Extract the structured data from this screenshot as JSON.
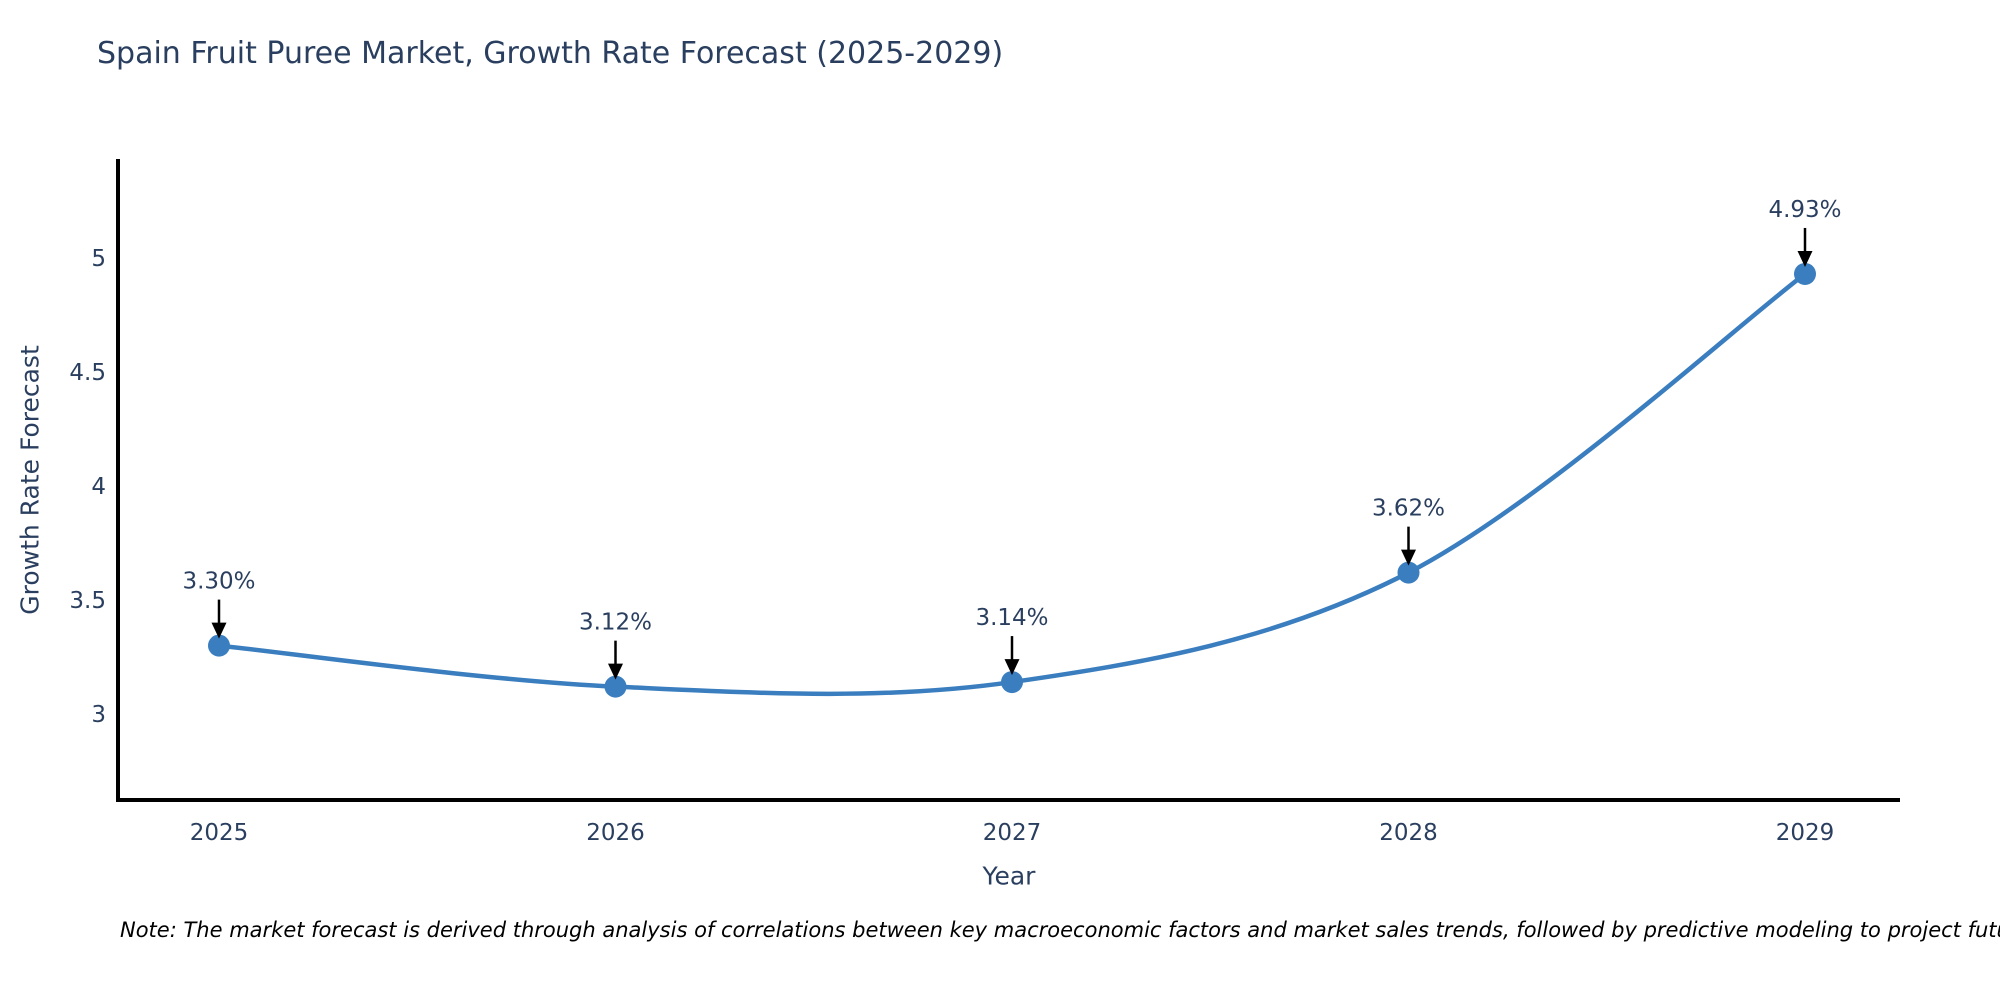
{
  "title": "Spain Fruit Puree Market, Growth Rate Forecast (2025-2029)",
  "note": "Note: The market forecast is derived through analysis of correlations between key macroeconomic factors and market sales trends, followed by predictive modeling to project future sales.",
  "chart_data": {
    "type": "line",
    "line_shape": "spline",
    "x": [
      "2025",
      "2026",
      "2027",
      "2028",
      "2029"
    ],
    "values": [
      3.3,
      3.12,
      3.14,
      3.62,
      4.93
    ],
    "point_labels": [
      "3.30%",
      "3.12%",
      "3.14%",
      "3.62%",
      "4.93%"
    ],
    "title": "Spain Fruit Puree Market, Growth Rate Forecast (2025-2029)",
    "xlabel": "Year",
    "ylabel": "Growth Rate Forecast",
    "yticks": [
      3,
      3.5,
      4,
      4.5,
      5
    ],
    "ylim": [
      2.62,
      5.43
    ],
    "grid": false,
    "legend_position": "none",
    "colors": {
      "line": "#3a7ebf",
      "marker": "#3a7ebf",
      "axis": "#000000",
      "tick_text": "#2a3f5f",
      "annotation_text": "#2a3f5f",
      "arrow": "#000000",
      "background": "#ffffff"
    }
  }
}
